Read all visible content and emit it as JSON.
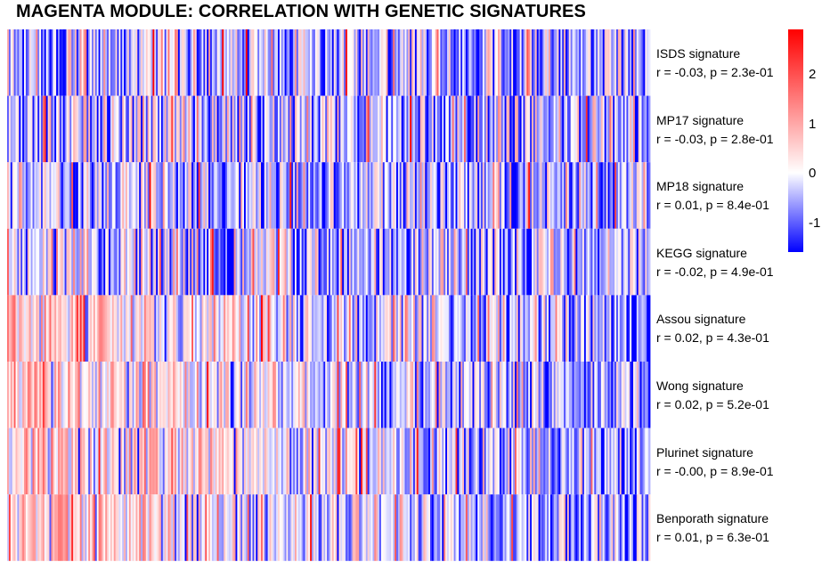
{
  "title": "MAGENTA MODULE: CORRELATION WITH GENETIC SIGNATURES",
  "chart_data": {
    "type": "heatmap",
    "title": "MAGENTA MODULE: CORRELATION WITH GENETIC SIGNATURES",
    "rows": [
      {
        "name": "ISDS signature",
        "stats": "r = -0.03, p = 2.3e-01",
        "r": -0.03,
        "p": 0.23
      },
      {
        "name": "MP17 signature",
        "stats": "r = -0.03, p = 2.8e-01",
        "r": -0.03,
        "p": 0.28
      },
      {
        "name": "MP18 signature",
        "stats": "r = 0.01, p = 8.4e-01",
        "r": 0.01,
        "p": 0.84
      },
      {
        "name": "KEGG signature",
        "stats": "r = -0.02, p = 4.9e-01",
        "r": -0.02,
        "p": 0.49
      },
      {
        "name": "Assou signature",
        "stats": "r = 0.02, p = 4.3e-01",
        "r": 0.02,
        "p": 0.43
      },
      {
        "name": "Wong signature",
        "stats": "r = 0.02, p = 5.2e-01",
        "r": 0.02,
        "p": 0.52
      },
      {
        "name": "Plurinet signature",
        "stats": "r = -0.00, p = 8.9e-01",
        "r": -0.0,
        "p": 0.89
      },
      {
        "name": "Benporath signature",
        "stats": "r = 0.01, p = 6.3e-01",
        "r": 0.01,
        "p": 0.63
      }
    ],
    "column_trend": [
      "flat",
      "flat",
      "flat",
      "flat",
      "decreasing",
      "decreasing",
      "decreasing",
      "decreasing"
    ],
    "color_scale": {
      "low": "#0000ff",
      "mid": "#ffffff",
      "high": "#ff0000",
      "range": [
        -1.6,
        2.9
      ],
      "ticks": [
        2,
        1,
        0,
        -1
      ],
      "tick_labels": [
        "2",
        "1",
        "0",
        "-1"
      ]
    },
    "legend_placement": "top-right"
  }
}
